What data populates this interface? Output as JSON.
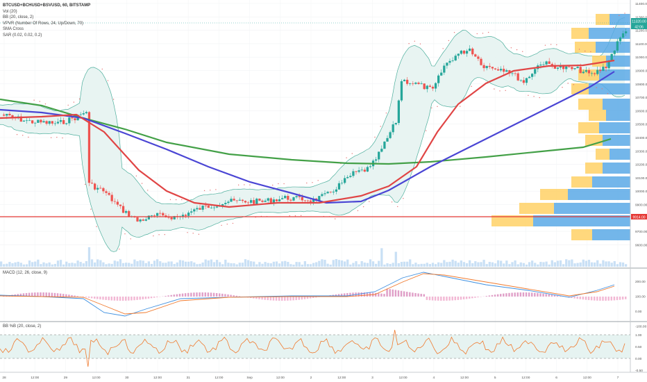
{
  "legend": {
    "symbol": "BTCUSD+BCHUSD+BSVUSD, 60, BITSTAMP",
    "indicators": [
      "Vol (20)",
      "BB (20, close, 2)",
      "VPVR (Number Of Rows, 24, Up/Down, 70)",
      "SMA Cross",
      "SAR (0.02, 0.02, 0.2)"
    ]
  },
  "panes": {
    "macd_label": "MACD (12, 26, close, 9)",
    "bbb_label": "BB %B (20, close, 2)"
  },
  "price_axis": {
    "ticks": [
      "11400.00",
      "11300.00",
      "11200.00",
      "11100.00",
      "11000.00",
      "10900.00",
      "10800.00",
      "10700.00",
      "10600.00",
      "10500.00",
      "10400.00",
      "10300.00",
      "10200.00",
      "10100.00",
      "10000.00",
      "9900.00",
      "9800.00",
      "9700.00",
      "9600.00"
    ],
    "current_price": "11320.00",
    "countdown": "42:06",
    "hline_price": "9914.00"
  },
  "macd_axis": {
    "ticks": [
      "200.00",
      "100.00",
      "0.00",
      "-100.00"
    ]
  },
  "bbb_axis": {
    "ticks": [
      "1.00",
      "0.50",
      "0.00",
      "-0.50"
    ]
  },
  "time_axis": {
    "labels": [
      "28",
      "12:00",
      "29",
      "12:00",
      "30",
      "12:00",
      "31",
      "12:00",
      "Sep",
      "12:00",
      "2",
      "12:00",
      "3",
      "12:00",
      "4",
      "12:00",
      "5",
      "12:00",
      "6",
      "12:00",
      "7"
    ]
  },
  "colors": {
    "up": "#26a69a",
    "down": "#ef5350",
    "bb_fill": "#e6f3f1",
    "bb_line": "#4cae9c",
    "sma_fast": "#e04545",
    "sma_slow": "#4a45d4",
    "sma_long": "#43a047",
    "vp_up": "#5aa9e6",
    "vp_down": "#ffd166",
    "hline": "#e53935",
    "macd_line": "#3d8fe0",
    "signal_line": "#f07a2e",
    "bbb_line": "#f07a2e"
  }
}
